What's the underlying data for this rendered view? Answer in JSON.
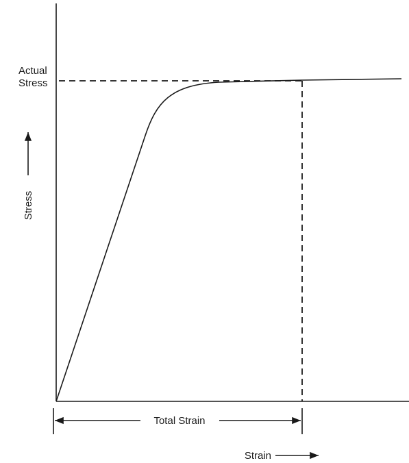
{
  "annotation_lines": [
    "Actual",
    "Stress"
  ],
  "y_axis_label": "Stress",
  "x_axis_label": "Strain",
  "dimension_label": "Total Strain"
}
